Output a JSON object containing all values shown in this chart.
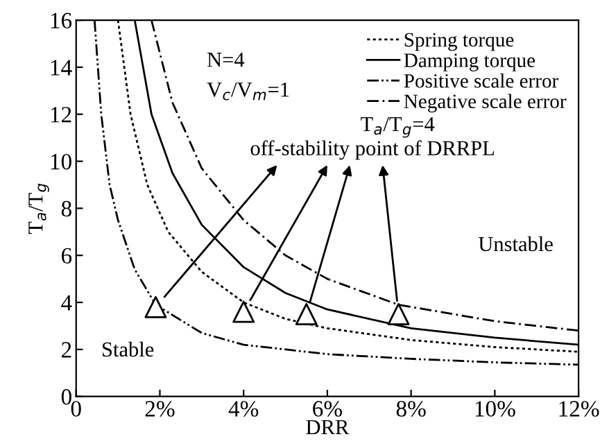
{
  "chart_data": {
    "type": "line",
    "xlabel": "DRR",
    "ylabel": "T$_{a}$/T$_{g}$",
    "xlim": [
      0,
      12
    ],
    "ylim": [
      0,
      16
    ],
    "xticks": [
      0,
      {
        "value": 2,
        "label": "2%"
      },
      {
        "value": 4,
        "label": "4%"
      },
      {
        "value": 6,
        "label": "6%"
      },
      {
        "value": 8,
        "label": "8%"
      },
      {
        "value": 10,
        "label": "10%"
      },
      {
        "value": 12,
        "label": "12%"
      }
    ],
    "yticks": [
      0,
      2,
      4,
      6,
      8,
      10,
      12,
      14,
      16
    ],
    "grid": false,
    "legend": "top right",
    "series": [
      {
        "name": "Spring torque",
        "color": "#000000",
        "line_style": "dotted",
        "x": [
          1.0,
          1.3,
          1.7,
          2.2,
          3,
          4,
          5,
          6,
          8,
          10,
          12
        ],
        "values": [
          16,
          12,
          9,
          7,
          5.3,
          4,
          3.3,
          2.9,
          2.4,
          2.1,
          1.9
        ]
      },
      {
        "name": "Damping torque",
        "color": "#000000",
        "line_style": "solid",
        "x": [
          1.4,
          1.8,
          2.3,
          3,
          4,
          5,
          6,
          8,
          10,
          12
        ],
        "values": [
          16,
          12,
          9.5,
          7.3,
          5.5,
          4.4,
          3.7,
          2.9,
          2.5,
          2.2
        ]
      },
      {
        "name": "Positive scale error",
        "color": "#000000",
        "line_style": "dashdotdot",
        "x": [
          0.44,
          0.6,
          0.8,
          1.0,
          1.4,
          1.9,
          3,
          4,
          6,
          8,
          10,
          12
        ],
        "values": [
          16,
          12,
          9,
          7.5,
          5.4,
          3.9,
          2.7,
          2.2,
          1.8,
          1.6,
          1.45,
          1.35
        ]
      },
      {
        "name": "Negative scale error",
        "color": "#000000",
        "line_style": "dashdot",
        "x": [
          1.8,
          2.3,
          3,
          4,
          5,
          6,
          7.7,
          10,
          12
        ],
        "values": [
          16,
          12.5,
          9.7,
          7.5,
          6,
          5,
          3.9,
          3.2,
          2.8
        ]
      },
      {
        "type": "scatter",
        "marker": "triangle",
        "color": "#000000",
        "x": [
          1.9,
          4.0,
          5.5,
          7.7
        ],
        "values": [
          3.8,
          3.6,
          3.5,
          3.5
        ]
      }
    ],
    "annotations": [
      "N=4",
      "V$_{c}$/V$_{m}$=1",
      "T$_{a}$/T$_{g}$=4",
      "off-stability point of DRRPL",
      "Stable",
      "Unstable"
    ]
  }
}
